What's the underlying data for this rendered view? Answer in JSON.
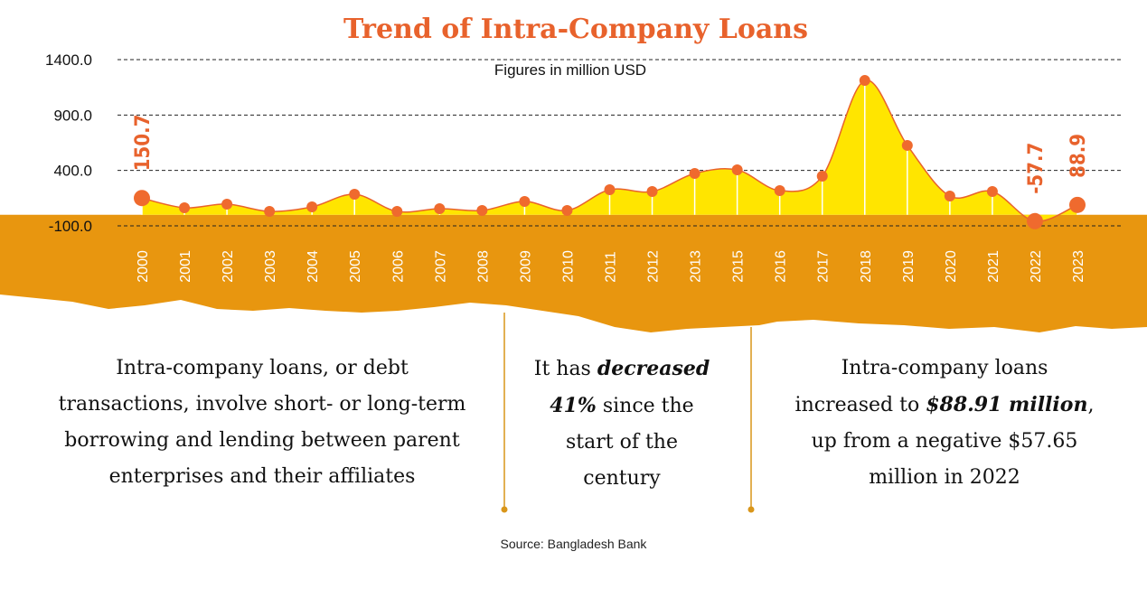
{
  "chart_data": {
    "type": "area",
    "title": "Trend of Intra-Company Loans",
    "subtitle": "Figures in million USD",
    "categories": [
      "2000",
      "2001",
      "2002",
      "2003",
      "2004",
      "2005",
      "2006",
      "2007",
      "2008",
      "2009",
      "2010",
      "2011",
      "2012",
      "2013",
      "2015",
      "2016",
      "2017",
      "2018",
      "2019",
      "2020",
      "2021",
      "2022",
      "2023"
    ],
    "values": [
      150.7,
      63,
      96,
      30,
      71,
      185,
      30,
      55,
      39,
      120,
      39,
      226,
      210,
      373,
      405,
      218,
      348,
      1212,
      626,
      169,
      210,
      -57.7,
      88.9
    ],
    "color": "#ffe500",
    "line_color": "#e8622c",
    "ylim": [
      -100,
      1400
    ],
    "yticks": [
      {
        "value": -100,
        "label": "-100.0"
      },
      {
        "value": 400,
        "label": "400.0"
      },
      {
        "value": 900,
        "label": "900.0"
      },
      {
        "value": 1400,
        "label": "1400.0"
      }
    ],
    "grid": true
  },
  "notes": [
    [
      "Intra-company loans, or debt transactions, involve short- or long-term borrowing and lending between parent enterprises and their affiliates"
    ],
    [
      "It has ",
      "decreased 41%",
      " since the start of the century"
    ],
    [
      "Intra-company loans increased to ",
      "$88.91 million",
      ", up from a negative $57.65 million in 2022"
    ]
  ],
  "source": "Source: Bangladesh Bank"
}
